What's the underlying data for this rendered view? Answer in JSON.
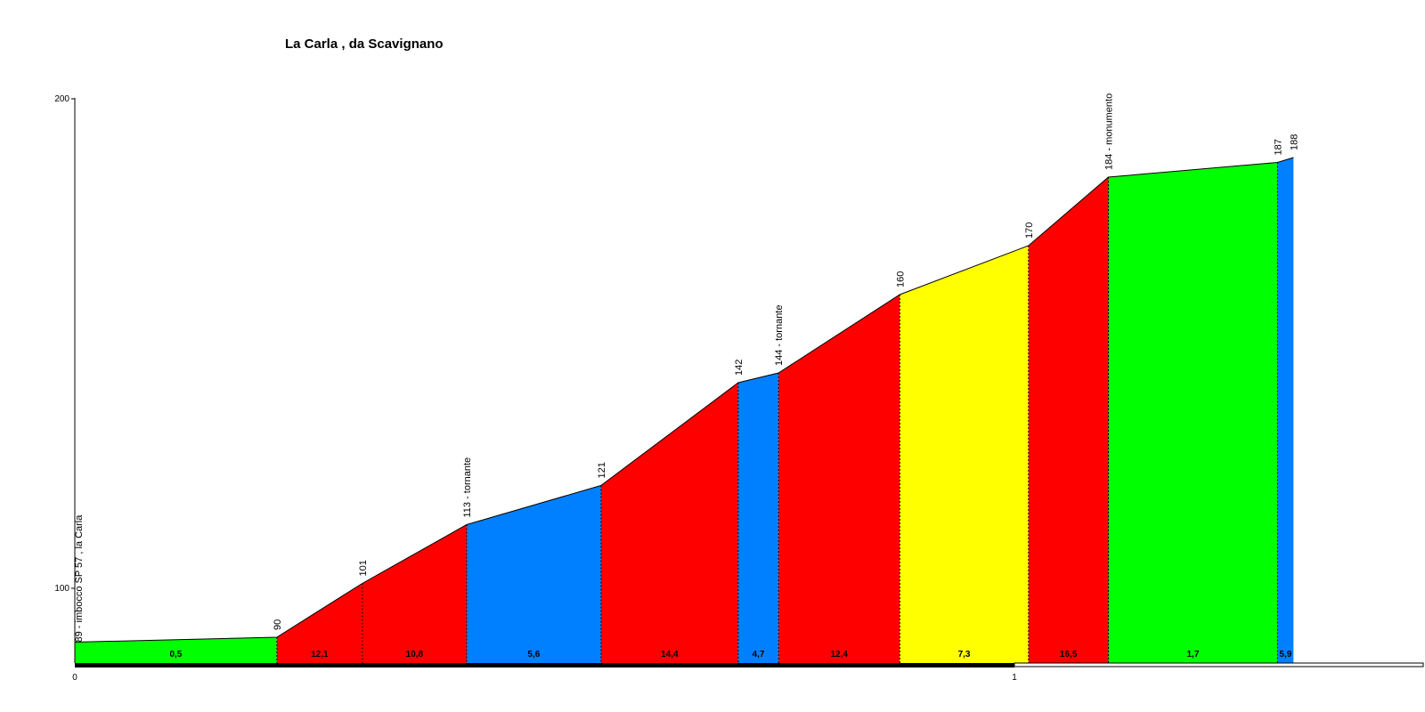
{
  "chart_data": {
    "type": "area",
    "title": "La Carla , da Scavignano",
    "xlabel": "",
    "ylabel": "",
    "xlim": [
      0,
      1.45
    ],
    "ylim": [
      89,
      200
    ],
    "y_ticks": [
      {
        "value": 100,
        "label": "100"
      },
      {
        "value": 200,
        "label": "200"
      }
    ],
    "x_ticks": [
      {
        "value": 0,
        "label": "0"
      },
      {
        "value": 1,
        "label": "1"
      }
    ],
    "grid": false,
    "points": [
      {
        "x": 0.0,
        "y": 89,
        "label": "89 - imbocco SP 57 , la Carla"
      },
      {
        "x": 0.215,
        "y": 90,
        "label": "90"
      },
      {
        "x": 0.306,
        "y": 101,
        "label": "101"
      },
      {
        "x": 0.417,
        "y": 113,
        "label": "113 - tornante"
      },
      {
        "x": 0.56,
        "y": 121,
        "label": "121"
      },
      {
        "x": 0.706,
        "y": 142,
        "label": "142"
      },
      {
        "x": 0.749,
        "y": 144,
        "label": "144 - tornante"
      },
      {
        "x": 0.878,
        "y": 160,
        "label": "160"
      },
      {
        "x": 1.015,
        "y": 170,
        "label": "170"
      },
      {
        "x": 1.1,
        "y": 184,
        "label": "184 - monumento"
      },
      {
        "x": 1.28,
        "y": 187,
        "label": "187"
      },
      {
        "x": 1.297,
        "y": 188,
        "label": "188"
      }
    ],
    "segments": [
      {
        "grade": "0,5",
        "color": "#00ff00"
      },
      {
        "grade": "12,1",
        "color": "#ff0000"
      },
      {
        "grade": "10,8",
        "color": "#ff0000"
      },
      {
        "grade": "5,6",
        "color": "#0080ff"
      },
      {
        "grade": "14,4",
        "color": "#ff0000"
      },
      {
        "grade": "4,7",
        "color": "#0080ff"
      },
      {
        "grade": "12,4",
        "color": "#ff0000"
      },
      {
        "grade": "7,3",
        "color": "#ffff00"
      },
      {
        "grade": "16,5",
        "color": "#ff0000"
      },
      {
        "grade": "1,7",
        "color": "#00ff00"
      },
      {
        "grade": "5,9",
        "color": "#0080ff"
      }
    ]
  }
}
